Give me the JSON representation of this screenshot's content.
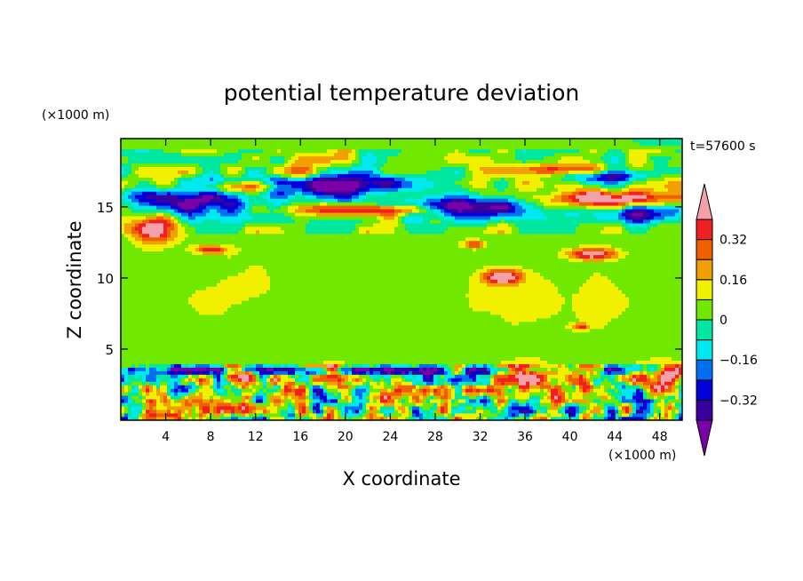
{
  "chart_data": {
    "type": "heatmap",
    "title": "potential temperature deviation",
    "xlabel": "X coordinate",
    "ylabel": "Z coordinate",
    "x_unit": "(×1000 m)",
    "y_unit": "(×1000 m)",
    "time_label": "t=57600 s",
    "xlim": [
      0,
      50
    ],
    "ylim": [
      0,
      19.8
    ],
    "x_ticks": [
      4,
      8,
      12,
      16,
      20,
      24,
      28,
      32,
      36,
      40,
      44,
      48
    ],
    "y_ticks": [
      5,
      10,
      15
    ],
    "colorbar": {
      "levels": [
        -0.4,
        -0.32,
        -0.24,
        -0.16,
        -0.08,
        0,
        0.08,
        0.16,
        0.24,
        0.32,
        0.4
      ],
      "labels": [
        {
          "value": 0.32,
          "text": "0.32"
        },
        {
          "value": 0.16,
          "text": "0.16"
        },
        {
          "value": 0,
          "text": "0"
        },
        {
          "value": -0.16,
          "text": "−0.16"
        },
        {
          "value": -0.32,
          "text": "−0.32"
        }
      ],
      "colors": [
        "#7a00a8",
        "#3a009e",
        "#0000d8",
        "#0070f0",
        "#00e8f0",
        "#00e8a0",
        "#70e800",
        "#f0f000",
        "#f0a000",
        "#f06000",
        "#f02020",
        "#f4a0a8"
      ],
      "extend": "both"
    },
    "background_value": 0.04,
    "features": [
      {
        "band": "upper",
        "x": [
          0,
          50
        ],
        "z": [
          13.8,
          18.6
        ],
        "pattern": "purple and blue lobes with pink caps near 14–17 km"
      },
      {
        "band": "lower",
        "x": [
          0,
          50
        ],
        "z": [
          0.4,
          4.0
        ],
        "pattern": "strongly mixed warm and cold cells, blue layer near 3.5 km"
      }
    ]
  }
}
